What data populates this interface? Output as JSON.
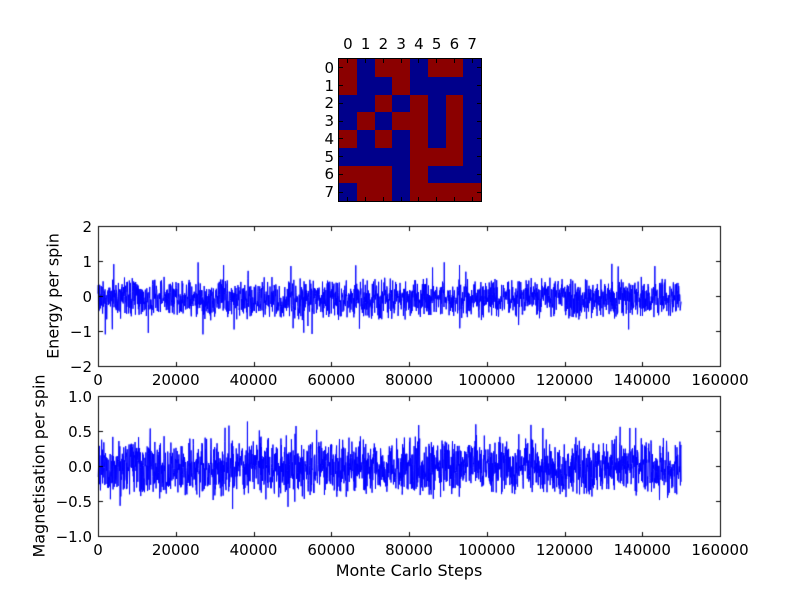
{
  "figure": {
    "background": "#ffffff",
    "text_color": "#000000",
    "line_color": "#0000ff"
  },
  "chart_data": [
    {
      "type": "heatmap",
      "name": "ising-spin-lattice",
      "x_tick_labels": [
        "0",
        "1",
        "2",
        "3",
        "4",
        "5",
        "6",
        "7"
      ],
      "y_tick_labels": [
        "0",
        "1",
        "2",
        "3",
        "4",
        "5",
        "6",
        "7"
      ],
      "value_colors": {
        "1": "#8b0000",
        "-1": "#00008b"
      },
      "values": [
        [
          1,
          -1,
          1,
          1,
          -1,
          1,
          1,
          -1
        ],
        [
          1,
          -1,
          -1,
          1,
          -1,
          -1,
          -1,
          -1
        ],
        [
          -1,
          -1,
          1,
          -1,
          1,
          -1,
          1,
          -1
        ],
        [
          -1,
          1,
          -1,
          1,
          1,
          -1,
          1,
          -1
        ],
        [
          1,
          -1,
          1,
          -1,
          1,
          -1,
          1,
          -1
        ],
        [
          -1,
          -1,
          -1,
          -1,
          1,
          1,
          1,
          -1
        ],
        [
          1,
          1,
          1,
          -1,
          1,
          -1,
          -1,
          -1
        ],
        [
          -1,
          1,
          1,
          -1,
          1,
          1,
          1,
          1
        ]
      ]
    },
    {
      "type": "line",
      "ylabel": "Energy per spin",
      "xlim": [
        0,
        160000
      ],
      "ylim": [
        -2,
        2
      ],
      "xticks": [
        0,
        20000,
        40000,
        60000,
        80000,
        100000,
        120000,
        140000,
        160000
      ],
      "x_tick_labels": [
        "0",
        "20000",
        "40000",
        "60000",
        "80000",
        "100000",
        "120000",
        "140000",
        "160000"
      ],
      "yticks": [
        2,
        1,
        0,
        -1,
        -2
      ],
      "ytick_labels": [
        "2",
        "1",
        "0",
        "−1",
        "−2"
      ],
      "grid": false,
      "legend": "none",
      "series": [
        {
          "name": "energy",
          "color": "#0000ff",
          "x_start": 0,
          "x_end": 150000,
          "mean": -0.08,
          "noise_band": 0.65,
          "spike": 0.95,
          "seed": 20240,
          "points": 2400
        }
      ]
    },
    {
      "type": "line",
      "ylabel": "Magnetisation per spin",
      "xlabel": "Monte Carlo Steps",
      "xlim": [
        0,
        160000
      ],
      "ylim": [
        -1,
        1
      ],
      "xticks": [
        0,
        20000,
        40000,
        60000,
        80000,
        100000,
        120000,
        140000,
        160000
      ],
      "x_tick_labels": [
        "0",
        "20000",
        "40000",
        "60000",
        "80000",
        "100000",
        "120000",
        "140000",
        "160000"
      ],
      "yticks": [
        1.0,
        0.5,
        0.0,
        -0.5,
        -1.0
      ],
      "ytick_labels": [
        "1.0",
        "0.5",
        "0.0",
        "−0.5",
        "−1.0"
      ],
      "grid": false,
      "legend": "none",
      "series": [
        {
          "name": "magnetisation",
          "color": "#0000ff",
          "x_start": 0,
          "x_end": 150000,
          "mean": -0.02,
          "noise_band": 0.47,
          "spike": 0.6,
          "seed": 777,
          "points": 2400
        }
      ]
    }
  ]
}
